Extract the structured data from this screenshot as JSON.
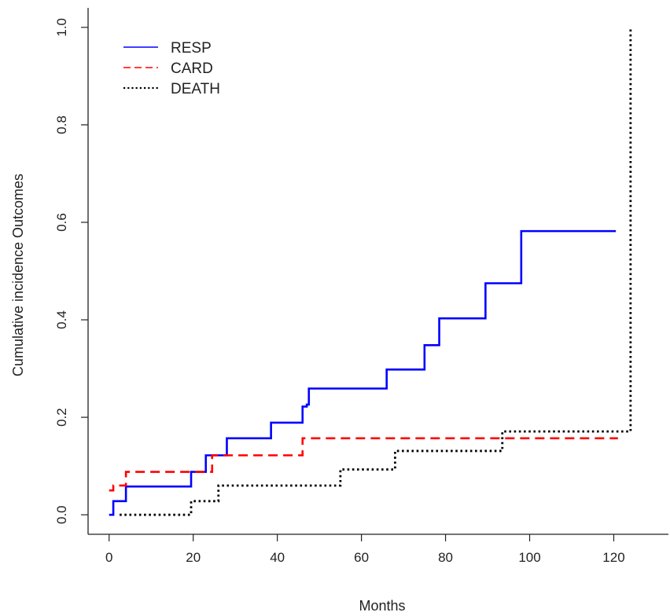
{
  "chart_data": {
    "type": "line",
    "step": true,
    "title": "",
    "xlabel": "Months",
    "ylabel": "Cumulative incidence Outcomes",
    "xlim": [
      -5,
      133
    ],
    "ylim": [
      -0.04,
      1.04
    ],
    "xticks": [
      "0",
      "20",
      "40",
      "60",
      "80",
      "100",
      "120"
    ],
    "yticks": [
      "0.0",
      "0.2",
      "0.4",
      "0.6",
      "0.8",
      "1.0"
    ],
    "grid": false,
    "legend_position": "top-left",
    "series": [
      {
        "name": "RESP",
        "color": "#0000ff",
        "line_style": "solid",
        "x": [
          0,
          1,
          4,
          19.5,
          23,
          28,
          38.5,
          46,
          47,
          47.5,
          66,
          75,
          78.5,
          89.5,
          98,
          120.5
        ],
        "y": [
          0,
          0.028,
          0.058,
          0.088,
          0.122,
          0.157,
          0.189,
          0.222,
          0.226,
          0.259,
          0.298,
          0.348,
          0.403,
          0.475,
          0.582,
          0.582
        ]
      },
      {
        "name": "CARD",
        "color": "#ff0000",
        "line_style": "dashed",
        "x": [
          0,
          1,
          4,
          24.5,
          46,
          121
        ],
        "y": [
          0.05,
          0.06,
          0.088,
          0.122,
          0.157,
          0.157
        ]
      },
      {
        "name": "DEATH",
        "color": "#000000",
        "line_style": "dotted",
        "x": [
          2.5,
          19.5,
          26,
          55,
          68,
          93.5,
          124,
          124
        ],
        "y": [
          0,
          0.028,
          0.06,
          0.093,
          0.131,
          0.171,
          0.249,
          1.0
        ]
      }
    ]
  }
}
